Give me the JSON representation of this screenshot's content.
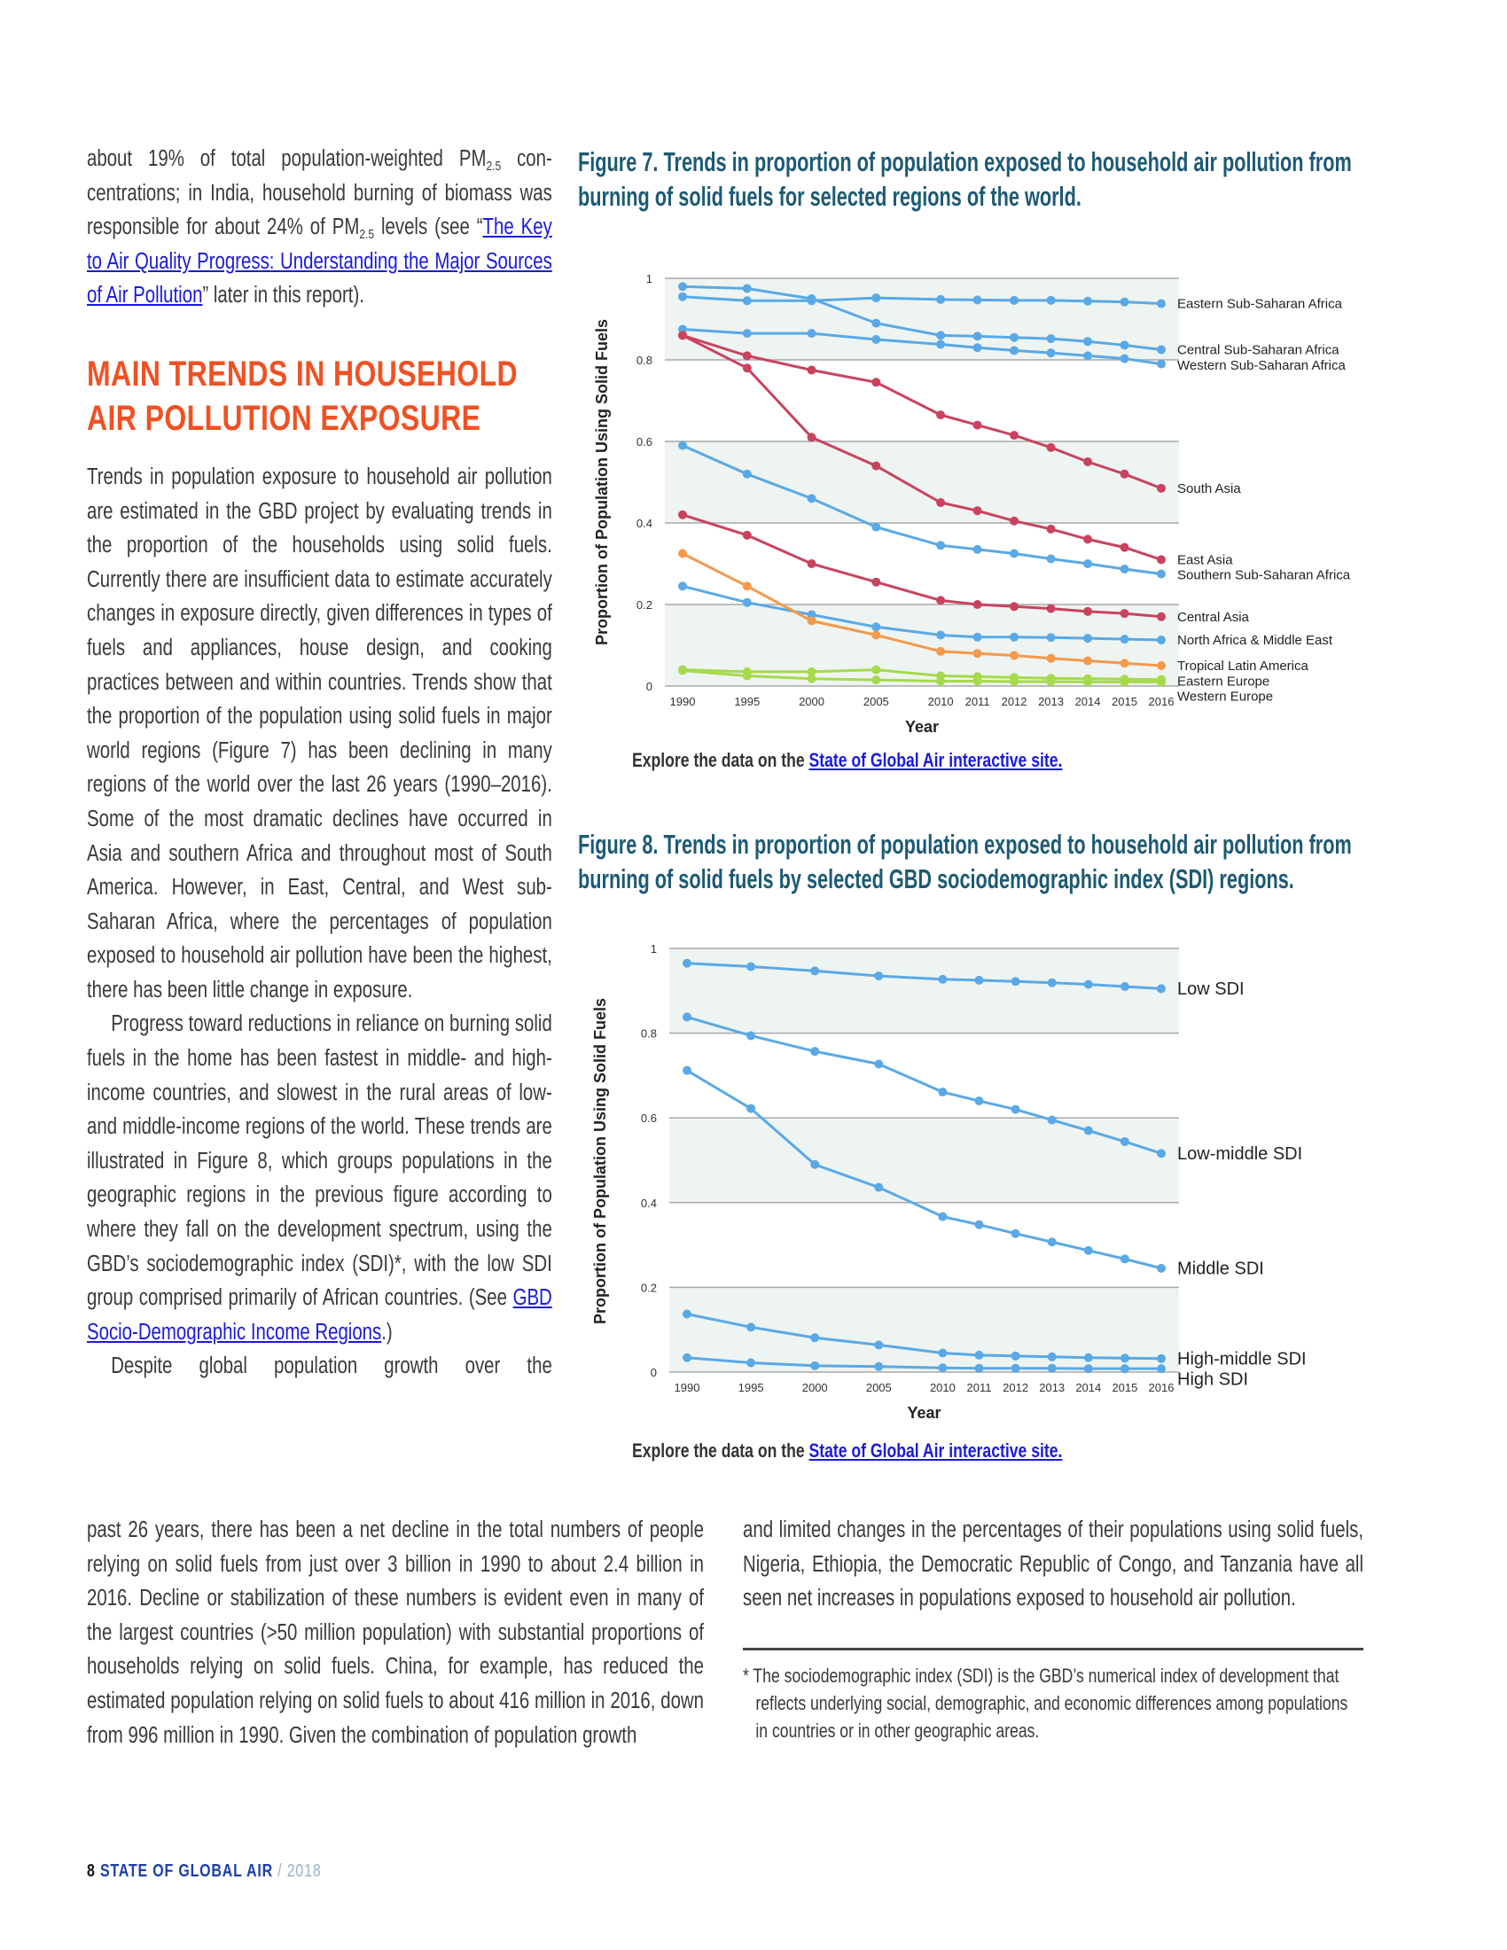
{
  "left_column": {
    "intro": {
      "t1": "about 19% of total population-weighted PM",
      "sub1": "2.5",
      "t2": " con­centrations; in India, household burning of biomass was responsible for about 24% of PM",
      "sub2": "2.5",
      "t3": " levels (see “",
      "link": "The Key to Air Quality Progress: Understanding the Major Sources of Air Pollution",
      "t4": "” later in this report)."
    },
    "heading": "MAIN TRENDS IN HOUSEHOLD AIR POLLUTION EXPOSURE",
    "para1": "Trends in population exposure to household air pol­lution are estimated in the GBD project by evaluat­ing trends in the proportion of the households using solid fuels. Currently there are insufficient data to estimate accurately changes in exposure directly, given differences in types of fuels and appliances, house design, and cooking practices between and within countries. Trends show that the proportion of the population using solid fuels in major world re­gions (Figure 7) has been declining in many regions of the world over the last 26 years (1990–2016). Some of the most dramatic declines have occurred in Asia and southern Africa and throughout most of South America. However, in East, Central, and West sub-Saharan Africa, where the percentages of population exposed to household air pollution have been the highest, there has been little change in exposure.",
    "para2": "Progress toward reductions in reliance on burning solid fuels in the home has been fast­est in middle- and high-income countries, and slowest in the rural areas of low- and middle-in­come regions of the world. These trends are il­lustrated in Figure 8, which groups populations in the geographic regions in the previous figure according to where they fall on the development spectrum, using the GBD’s sociodemographic in­dex (SDI)*, with the low SDI group comprised primarily of African countries. (See ",
    "para2_link": "GBD Socio-Demographic Income Regions",
    "para2_end": ".)",
    "para3_start": "Despite global population growth over the"
  },
  "bottom": {
    "left": "past 26 years, there has been a net decline in the total numbers of people relying on solid fuels from just over 3 billion in 1990 to about 2.4 billion in 2016. Decline or stabilization of these num­bers is evident even in many of the largest countries (>50 million population) with substantial proportions of households relying on solid fuels. China, for example, has reduced the estimated popula­tion relying on solid fuels to about 416 million in 2016, down from 996 million in 1990. Given the combination of population growth",
    "right": "and limited changes in the percentages of their populations us­ing solid fuels, Nigeria, Ethiopia, the Democratic Republic of Congo, and Tanzania have all seen net increases in populations ex­posed to household air pollution.",
    "footnote": "* The sociodemographic index (SDI) is the GBD’s numerical index of develop­ment that reflects underlying social, demographic, and economic differences among populations in countries or in other geographic areas."
  },
  "figure7": {
    "title": "Figure 7. Trends in proportion of population exposed to household air pollution from burning of solid fuels for selected regions of the world.",
    "explore_text": "Explore the data on the ",
    "explore_link": "State of Global Air interactive site."
  },
  "figure8": {
    "title": "Figure 8. Trends in proportion of population exposed to household air pollution from burning of solid fuels by selected GBD sociodemographic index (SDI) regions.",
    "explore_text": "Explore the data on the ",
    "explore_link": "State of Global Air interactive site."
  },
  "footer": {
    "page": "8",
    "publication": "STATE OF GLOBAL AIR",
    "sep": " / ",
    "year": "2018"
  },
  "colors": {
    "blue": "#5aa9e6",
    "red": "#c8435f",
    "orange": "#f5994a",
    "green": "#a6d94c",
    "band": "#eef4f1"
  },
  "chart_data": [
    {
      "type": "line",
      "title": "Figure 7",
      "xlabel": "Year",
      "ylabel": "Proportion of Population Using Solid Fuels",
      "ylim": [
        0,
        1
      ],
      "yticks": [
        "0",
        "0.2",
        "0.4",
        "0.6",
        "0.8",
        "1"
      ],
      "x": [
        "1990",
        "1995",
        "2000",
        "2005",
        "2010",
        "2011",
        "2012",
        "2013",
        "2014",
        "2015",
        "2016"
      ],
      "legend": "right-end labels",
      "series": [
        {
          "name": "Eastern Sub-Saharan Africa",
          "color": "#5aa9e6",
          "values": [
            0.955,
            0.945,
            0.945,
            0.952,
            0.948,
            0.947,
            0.946,
            0.946,
            0.944,
            0.942,
            0.938
          ]
        },
        {
          "name": "Central Sub-Saharan Africa",
          "color": "#5aa9e6",
          "values": [
            0.98,
            0.975,
            0.95,
            0.89,
            0.86,
            0.858,
            0.855,
            0.852,
            0.845,
            0.836,
            0.825
          ]
        },
        {
          "name": "Western Sub-Saharan Africa",
          "color": "#5aa9e6",
          "values": [
            0.875,
            0.865,
            0.865,
            0.85,
            0.838,
            0.83,
            0.823,
            0.817,
            0.81,
            0.803,
            0.79
          ]
        },
        {
          "name": "South Asia",
          "color": "#c8435f",
          "values": [
            0.86,
            0.81,
            0.775,
            0.745,
            0.665,
            0.64,
            0.615,
            0.585,
            0.55,
            0.52,
            0.485
          ]
        },
        {
          "name": "East Asia",
          "color": "#c8435f",
          "values": [
            0.86,
            0.78,
            0.61,
            0.54,
            0.45,
            0.43,
            0.405,
            0.385,
            0.36,
            0.34,
            0.31
          ]
        },
        {
          "name": "Southern Sub-Saharan Africa",
          "color": "#5aa9e6",
          "values": [
            0.59,
            0.52,
            0.46,
            0.39,
            0.345,
            0.335,
            0.325,
            0.312,
            0.3,
            0.287,
            0.275
          ]
        },
        {
          "name": "Central Asia",
          "color": "#c8435f",
          "values": [
            0.42,
            0.37,
            0.3,
            0.255,
            0.21,
            0.2,
            0.195,
            0.19,
            0.183,
            0.178,
            0.17
          ]
        },
        {
          "name": "North Africa & Middle East",
          "color": "#5aa9e6",
          "values": [
            0.245,
            0.205,
            0.175,
            0.145,
            0.125,
            0.12,
            0.12,
            0.119,
            0.117,
            0.115,
            0.113
          ]
        },
        {
          "name": "Tropical Latin America",
          "color": "#f5994a",
          "values": [
            0.325,
            0.245,
            0.16,
            0.125,
            0.085,
            0.08,
            0.075,
            0.068,
            0.062,
            0.056,
            0.05
          ]
        },
        {
          "name": "Eastern Europe",
          "color": "#a6d94c",
          "values": [
            0.04,
            0.035,
            0.035,
            0.04,
            0.025,
            0.023,
            0.021,
            0.019,
            0.018,
            0.017,
            0.016
          ]
        },
        {
          "name": "Western Europe",
          "color": "#a6d94c",
          "values": [
            0.038,
            0.025,
            0.018,
            0.015,
            0.012,
            0.012,
            0.011,
            0.011,
            0.01,
            0.01,
            0.01
          ]
        }
      ]
    },
    {
      "type": "line",
      "title": "Figure 8",
      "xlabel": "Year",
      "ylabel": "Proportion of Population  Using Solid Fuels",
      "ylim": [
        0,
        1
      ],
      "yticks": [
        "0",
        "0.2",
        "0.4",
        "0.6",
        "0.8",
        "1"
      ],
      "x": [
        "1990",
        "1995",
        "2000",
        "2005",
        "2010",
        "2011",
        "2012",
        "2013",
        "2014",
        "2015",
        "2016"
      ],
      "legend": "right-end labels",
      "series": [
        {
          "name": "Low SDI",
          "color": "#5aa9e6",
          "values": [
            0.965,
            0.957,
            0.947,
            0.935,
            0.927,
            0.925,
            0.922,
            0.919,
            0.915,
            0.91,
            0.905
          ]
        },
        {
          "name": "Low-middle SDI",
          "color": "#5aa9e6",
          "values": [
            0.838,
            0.794,
            0.757,
            0.727,
            0.661,
            0.64,
            0.62,
            0.595,
            0.57,
            0.544,
            0.516
          ]
        },
        {
          "name": "Middle SDI",
          "color": "#5aa9e6",
          "values": [
            0.712,
            0.622,
            0.49,
            0.436,
            0.367,
            0.348,
            0.327,
            0.307,
            0.287,
            0.267,
            0.245
          ]
        },
        {
          "name": "High-middle SDI",
          "color": "#5aa9e6",
          "values": [
            0.137,
            0.106,
            0.081,
            0.064,
            0.045,
            0.04,
            0.038,
            0.036,
            0.034,
            0.033,
            0.032
          ]
        },
        {
          "name": "High SDI",
          "color": "#5aa9e6",
          "values": [
            0.034,
            0.022,
            0.015,
            0.013,
            0.01,
            0.009,
            0.009,
            0.009,
            0.008,
            0.008,
            0.008
          ]
        }
      ]
    }
  ]
}
